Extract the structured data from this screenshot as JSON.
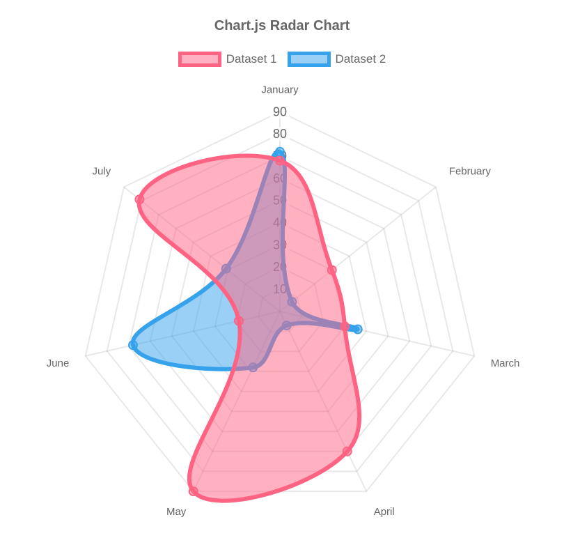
{
  "title": "Chart.js Radar Chart",
  "legend": {
    "position": "top",
    "items": [
      {
        "label": "Dataset 1",
        "border_color": "#FF6384",
        "fill_color": "rgba(255,99,132,0.5)"
      },
      {
        "label": "Dataset 2",
        "border_color": "#36A2EB",
        "fill_color": "rgba(54,162,235,0.5)"
      }
    ]
  },
  "chart_data": {
    "type": "radar",
    "title": "Chart.js Radar Chart",
    "categories": [
      "January",
      "February",
      "March",
      "April",
      "May",
      "June",
      "July"
    ],
    "series": [
      {
        "name": "Dataset 1",
        "values": [
          68,
          30,
          30,
          70,
          90,
          19,
          81
        ],
        "border_color": "#FF6384",
        "background_color": "rgba(255,99,132,0.5)"
      },
      {
        "name": "Dataset 2",
        "values": [
          72,
          7,
          36,
          7,
          28,
          68,
          31
        ],
        "border_color": "#36A2EB",
        "background_color": "rgba(54,162,235,0.5)"
      }
    ],
    "scale": {
      "min": 0,
      "max": 90,
      "step": 10,
      "tick_labels": [
        "10",
        "20",
        "30",
        "40",
        "50",
        "60",
        "70",
        "80",
        "90"
      ]
    },
    "grid": true,
    "legend_position": "top",
    "line_tension": 0.4,
    "colors": {
      "grid": "rgba(0,0,0,0.09)",
      "text": "#666666",
      "tick_backdrop": "rgba(255,255,255,0.75)"
    }
  }
}
